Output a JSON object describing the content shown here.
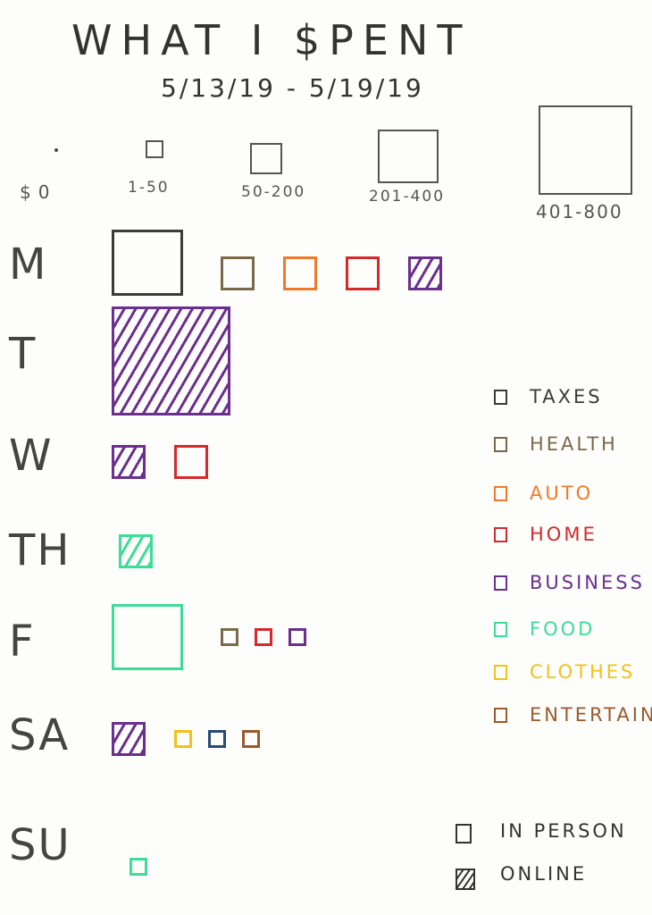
{
  "chart_data": {
    "type": "table",
    "title": "WHAT I $PENT",
    "subtitle": "5/13/19 - 5/19/19",
    "size_buckets": [
      {
        "label": "$0"
      },
      {
        "label": "1-50"
      },
      {
        "label": "50-200"
      },
      {
        "label": "201-400"
      },
      {
        "label": "401-800"
      }
    ],
    "categories": [
      {
        "label": "TAXES",
        "color": "#3b3b3b"
      },
      {
        "label": "HEALTH",
        "color": "#7a6a4a"
      },
      {
        "label": "AUTO",
        "color": "#f07a2a"
      },
      {
        "label": "HOME",
        "color": "#d42a2a"
      },
      {
        "label": "BUSINESS",
        "color": "#6a2f8f"
      },
      {
        "label": "FOOD",
        "color": "#3ddc98"
      },
      {
        "label": "CLOTHES",
        "color": "#f2c21a"
      },
      {
        "label": "ENTERTAINME",
        "color": "#9a5a2a"
      }
    ],
    "modes": [
      {
        "label": "IN PERSON",
        "hatched": false
      },
      {
        "label": "ONLINE",
        "hatched": true
      }
    ],
    "days": [
      {
        "label": "M",
        "items": [
          {
            "category": "TAXES",
            "bucket": "201-400",
            "mode": "IN PERSON"
          },
          {
            "category": "HEALTH",
            "bucket": "50-200",
            "mode": "IN PERSON"
          },
          {
            "category": "AUTO",
            "bucket": "50-200",
            "mode": "IN PERSON"
          },
          {
            "category": "HOME",
            "bucket": "50-200",
            "mode": "IN PERSON"
          },
          {
            "category": "BUSINESS",
            "bucket": "50-200",
            "mode": "ONLINE"
          }
        ]
      },
      {
        "label": "T",
        "items": [
          {
            "category": "BUSINESS",
            "bucket": "401-800",
            "mode": "ONLINE"
          }
        ]
      },
      {
        "label": "W",
        "items": [
          {
            "category": "BUSINESS",
            "bucket": "50-200",
            "mode": "ONLINE"
          },
          {
            "category": "HOME",
            "bucket": "50-200",
            "mode": "IN PERSON"
          }
        ]
      },
      {
        "label": "TH",
        "items": [
          {
            "category": "FOOD",
            "bucket": "50-200",
            "mode": "ONLINE"
          }
        ]
      },
      {
        "label": "F",
        "items": [
          {
            "category": "FOOD",
            "bucket": "201-400",
            "mode": "IN PERSON"
          },
          {
            "category": "HEALTH",
            "bucket": "1-50",
            "mode": "IN PERSON"
          },
          {
            "category": "HOME",
            "bucket": "1-50",
            "mode": "IN PERSON"
          },
          {
            "category": "BUSINESS",
            "bucket": "1-50",
            "mode": "IN PERSON"
          }
        ]
      },
      {
        "label": "SA",
        "items": [
          {
            "category": "BUSINESS",
            "bucket": "50-200",
            "mode": "ONLINE"
          },
          {
            "category": "CLOTHES",
            "bucket": "1-50",
            "mode": "IN PERSON"
          },
          {
            "category": null,
            "color": "#2a4a7a",
            "bucket": "1-50",
            "mode": "IN PERSON"
          },
          {
            "category": "ENTERTAINME",
            "bucket": "1-50",
            "mode": "IN PERSON"
          }
        ]
      },
      {
        "label": "SU",
        "items": [
          {
            "category": "FOOD",
            "bucket": "1-50",
            "mode": "IN PERSON"
          }
        ]
      }
    ]
  }
}
